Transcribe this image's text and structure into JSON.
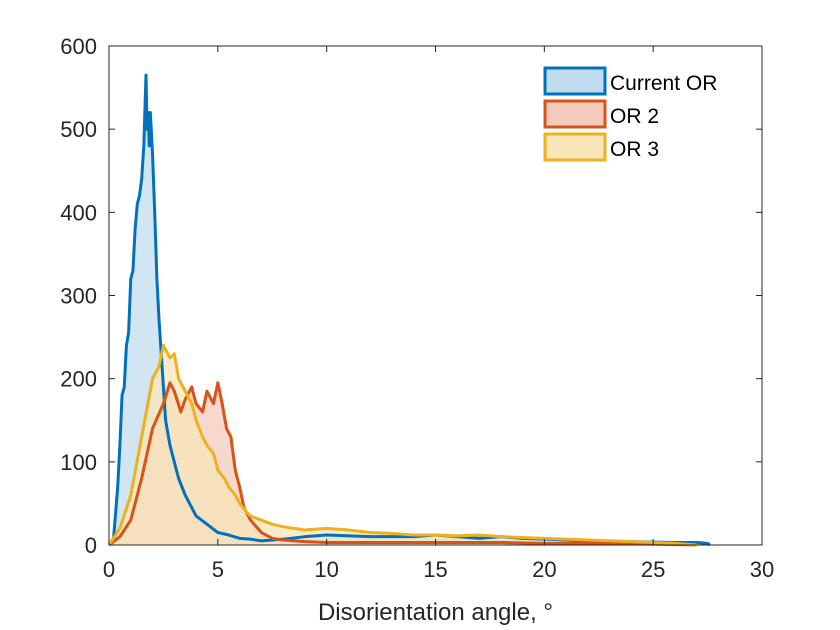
{
  "chart_data": {
    "type": "area",
    "title": "",
    "xlabel": "Disorientation angle, °",
    "ylabel": "",
    "xlim": [
      0,
      30
    ],
    "ylim": [
      0,
      600
    ],
    "xticks": [
      0,
      5,
      10,
      15,
      20,
      25,
      30
    ],
    "yticks": [
      0,
      100,
      200,
      300,
      400,
      500,
      600
    ],
    "grid": false,
    "legend_position": "top-right",
    "series": [
      {
        "name": "Current OR",
        "stroke": "#0072BD",
        "fill": "#c2dcef",
        "x": [
          0,
          0.2,
          0.4,
          0.5,
          0.6,
          0.7,
          0.8,
          0.9,
          1.0,
          1.1,
          1.2,
          1.3,
          1.4,
          1.5,
          1.6,
          1.7,
          1.75,
          1.8,
          1.85,
          1.9,
          2.0,
          2.1,
          2.2,
          2.3,
          2.4,
          2.5,
          2.6,
          2.8,
          3.0,
          3.2,
          3.5,
          3.8,
          4.0,
          4.5,
          5.0,
          5.5,
          6.0,
          6.5,
          7.0,
          8.0,
          9.0,
          10.0,
          12.0,
          14.0,
          15.0,
          16.0,
          17.0,
          18.0,
          19.0,
          20.0,
          22.0,
          24.0,
          26.0,
          27.0,
          27.5,
          27.6
        ],
        "y": [
          0,
          5,
          70,
          120,
          180,
          190,
          240,
          255,
          320,
          330,
          380,
          410,
          420,
          440,
          480,
          565,
          500,
          520,
          480,
          520,
          470,
          400,
          320,
          270,
          230,
          190,
          150,
          120,
          100,
          80,
          60,
          45,
          35,
          25,
          15,
          12,
          8,
          7,
          5,
          7,
          10,
          12,
          10,
          10,
          12,
          10,
          8,
          10,
          8,
          7,
          5,
          4,
          3,
          3,
          2,
          0
        ]
      },
      {
        "name": "OR 2",
        "stroke": "#D95319",
        "fill": "#f4cbbb",
        "x": [
          0,
          0.5,
          1.0,
          1.5,
          2.0,
          2.5,
          2.8,
          3.0,
          3.3,
          3.5,
          3.8,
          4.0,
          4.3,
          4.5,
          4.8,
          5.0,
          5.2,
          5.4,
          5.6,
          5.8,
          6.0,
          6.2,
          6.5,
          7.0,
          7.5,
          8.0,
          8.5,
          9.0,
          10.0,
          12.0,
          14.0,
          16.0,
          18.0,
          20.0,
          22.0,
          25.0,
          27.0
        ],
        "y": [
          0,
          10,
          30,
          80,
          140,
          170,
          195,
          185,
          160,
          175,
          190,
          170,
          160,
          185,
          170,
          195,
          170,
          140,
          130,
          90,
          70,
          45,
          30,
          15,
          8,
          6,
          5,
          4,
          3,
          3,
          3,
          3,
          3,
          2,
          2,
          1,
          0
        ]
      },
      {
        "name": "OR 3",
        "stroke": "#EDB120",
        "fill": "#f8e6b9",
        "x": [
          0,
          0.5,
          1.0,
          1.5,
          2.0,
          2.3,
          2.5,
          2.8,
          3.0,
          3.2,
          3.5,
          3.8,
          4.0,
          4.3,
          4.5,
          4.8,
          5.0,
          5.3,
          5.5,
          5.8,
          6.0,
          6.3,
          6.5,
          7.0,
          7.5,
          8.0,
          8.5,
          9.0,
          10.0,
          11.0,
          12.0,
          13.0,
          14.0,
          15.0,
          16.0,
          17.0,
          18.0,
          19.0,
          20.0,
          21.0,
          22.0,
          24.0,
          26.0,
          27.0
        ],
        "y": [
          0,
          20,
          60,
          130,
          200,
          215,
          240,
          225,
          230,
          200,
          185,
          170,
          150,
          130,
          120,
          110,
          90,
          80,
          70,
          60,
          50,
          40,
          35,
          30,
          25,
          22,
          20,
          18,
          20,
          18,
          15,
          14,
          12,
          12,
          11,
          12,
          10,
          9,
          8,
          7,
          6,
          4,
          2,
          0
        ]
      }
    ]
  }
}
